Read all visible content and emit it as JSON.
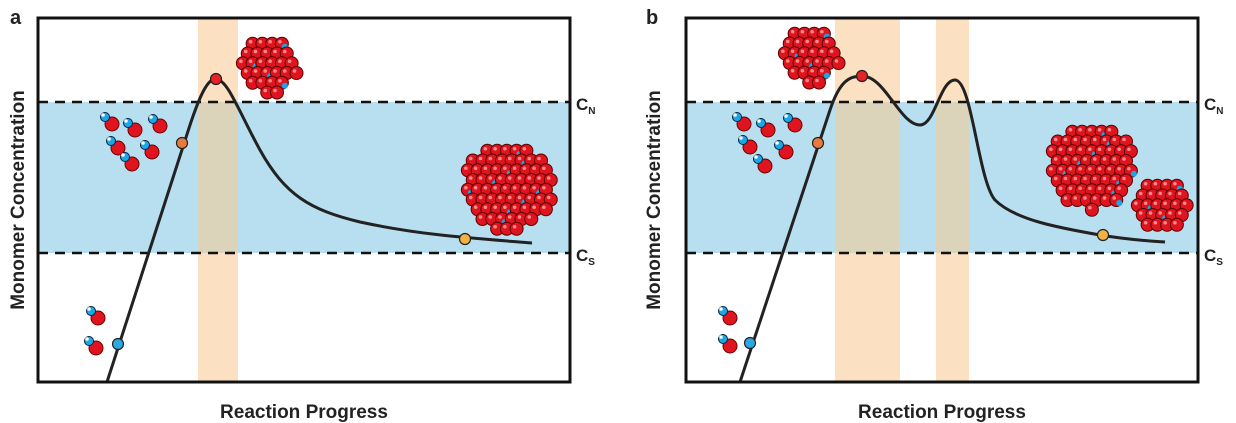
{
  "panels": [
    {
      "label": "a",
      "y_axis": "Monomer Concentration",
      "x_axis": "Reaction Progress",
      "upper": {
        "main": "C",
        "sub": "N"
      },
      "lower": {
        "main": "C",
        "sub": "S"
      }
    },
    {
      "label": "b",
      "y_axis": "Monomer Concentration",
      "x_axis": "Reaction Progress",
      "upper": {
        "main": "C",
        "sub": "N"
      },
      "lower": {
        "main": "C",
        "sub": "S"
      }
    }
  ]
}
